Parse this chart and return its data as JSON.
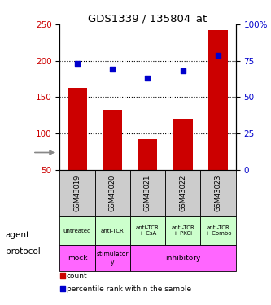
{
  "title": "GDS1339 / 135804_at",
  "samples": [
    "GSM43019",
    "GSM43020",
    "GSM43021",
    "GSM43022",
    "GSM43023"
  ],
  "bar_values": [
    163,
    133,
    92,
    120,
    242
  ],
  "dot_values_pct": [
    73,
    69,
    63,
    68,
    79
  ],
  "bar_color": "#cc0000",
  "dot_color": "#0000cc",
  "ylim_left": [
    50,
    250
  ],
  "ylim_right": [
    0,
    100
  ],
  "yticks_left": [
    50,
    100,
    150,
    200,
    250
  ],
  "yticks_right": [
    0,
    25,
    50,
    75,
    100
  ],
  "ytick_labels_left": [
    "50",
    "100",
    "150",
    "200",
    "250"
  ],
  "ytick_labels_right": [
    "0",
    "25",
    "50",
    "75",
    "100%"
  ],
  "agent_labels": [
    "untreated",
    "anti-TCR",
    "anti-TCR\n+ CsA",
    "anti-TCR\n+ PKCi",
    "anti-TCR\n+ Combo"
  ],
  "agent_bg_color": "#ccffcc",
  "sample_bg_color": "#cccccc",
  "protocol_mock_color": "#ff88ff",
  "protocol_stim_color": "#ff88ff",
  "protocol_inhib_color": "#ff44ff",
  "legend_count_color": "#cc0000",
  "legend_pct_color": "#0000cc",
  "hgrid_vals": [
    100,
    150,
    200
  ]
}
